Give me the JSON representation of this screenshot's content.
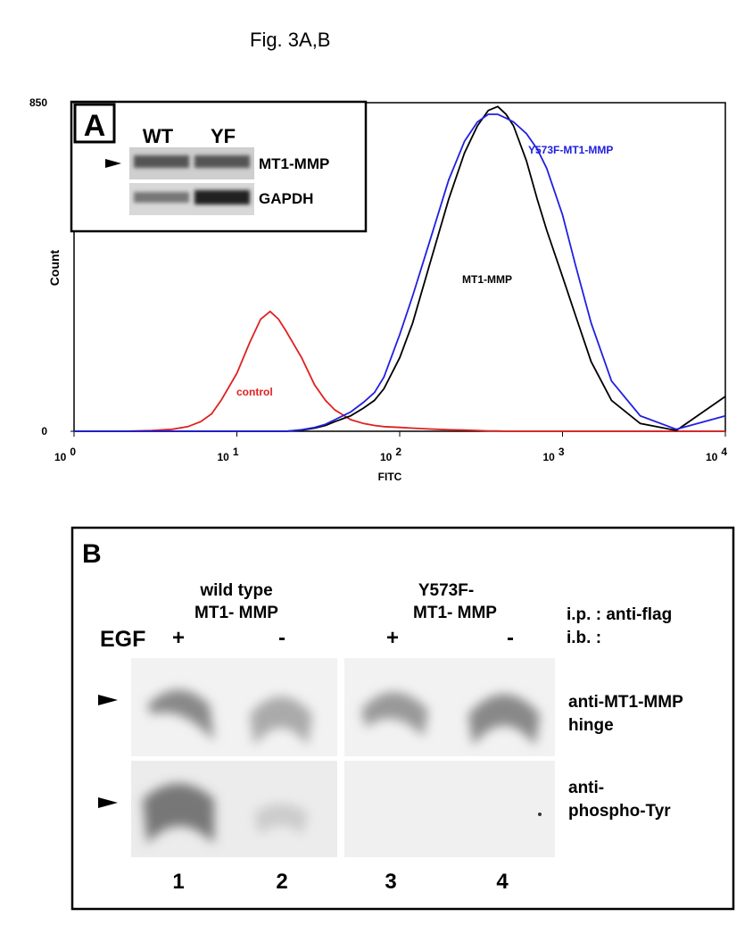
{
  "figure_title": "Fig. 3A,B",
  "chart_data": {
    "type": "line",
    "panel_label": "A",
    "xlabel": "FITC",
    "ylabel": "Count",
    "xscale": "log",
    "xlim": [
      1,
      10000
    ],
    "ylim": [
      0,
      850
    ],
    "yticks": [
      0,
      850
    ],
    "xticks": [
      {
        "value": 1,
        "label": "10",
        "exponent": "0"
      },
      {
        "value": 10,
        "label": "10",
        "exponent": "1"
      },
      {
        "value": 100,
        "label": "10",
        "exponent": "2"
      },
      {
        "value": 1000,
        "label": "10",
        "exponent": "3"
      },
      {
        "value": 10000,
        "label": "10",
        "exponent": "4"
      }
    ],
    "x": [
      1,
      2,
      3,
      4,
      5,
      6,
      7,
      8,
      10,
      12,
      14,
      16,
      18,
      20,
      25,
      30,
      35,
      40,
      50,
      60,
      70,
      80,
      100,
      120,
      150,
      200,
      250,
      300,
      350,
      400,
      450,
      500,
      600,
      700,
      800,
      1000,
      1200,
      1500,
      2000,
      3000,
      5000,
      10000
    ],
    "series": [
      {
        "name": "control",
        "color": "#e02020",
        "values": [
          0,
          0,
          2,
          5,
          12,
          25,
          45,
          80,
          150,
          230,
          290,
          310,
          290,
          260,
          190,
          120,
          80,
          55,
          30,
          20,
          15,
          12,
          10,
          8,
          6,
          4,
          3,
          2,
          1,
          1,
          0,
          0,
          0,
          0,
          0,
          0,
          0,
          0,
          0,
          0,
          0,
          0
        ]
      },
      {
        "name": "MT1-MMP",
        "color": "#000000",
        "values": [
          0,
          0,
          0,
          0,
          0,
          0,
          0,
          0,
          0,
          0,
          0,
          0,
          0,
          0,
          3,
          8,
          15,
          25,
          40,
          60,
          80,
          110,
          190,
          280,
          420,
          600,
          720,
          790,
          830,
          840,
          820,
          790,
          700,
          600,
          520,
          400,
          300,
          180,
          80,
          20,
          2,
          90
        ]
      },
      {
        "name": "Y573F-MT1-MMP",
        "color": "#2020e0",
        "values": [
          0,
          0,
          0,
          0,
          0,
          0,
          0,
          0,
          0,
          0,
          0,
          0,
          0,
          0,
          4,
          10,
          18,
          30,
          50,
          75,
          100,
          140,
          250,
          350,
          480,
          650,
          750,
          800,
          820,
          820,
          810,
          800,
          770,
          730,
          680,
          560,
          430,
          280,
          130,
          40,
          5,
          40
        ]
      }
    ]
  },
  "inset_blot": {
    "lanes": [
      "WT",
      "YF"
    ],
    "rows": [
      "MT1-MMP",
      "GAPDH"
    ]
  },
  "panel_b": {
    "label": "B",
    "group1": [
      "wild type",
      "MT1- MMP"
    ],
    "group2": [
      "Y573F-",
      "MT1- MMP"
    ],
    "egf": "EGF",
    "treatments": [
      "+",
      "-",
      "+",
      "-"
    ],
    "ip": "i.p. : anti-flag",
    "ib": "i.b. :",
    "row1": [
      "anti-MT1-MMP",
      "hinge"
    ],
    "row2": [
      "anti-",
      "phospho-Tyr"
    ],
    "lanes": [
      "1",
      "2",
      "3",
      "4"
    ]
  }
}
